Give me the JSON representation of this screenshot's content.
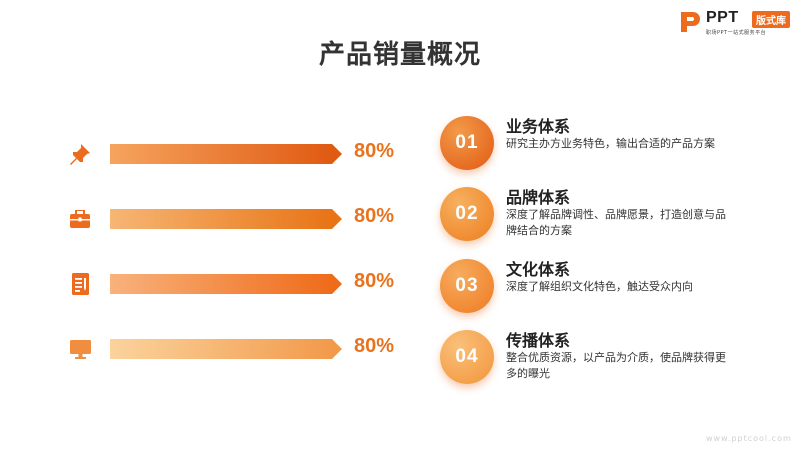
{
  "logo": {
    "name": "PPT",
    "badge": "版式库",
    "tagline": "职场PPT一站式服务平台"
  },
  "title": "产品销量概况",
  "bars": [
    {
      "icon": "pushpin-icon",
      "value_label": "80%",
      "percent": 80
    },
    {
      "icon": "briefcase-icon",
      "value_label": "80%",
      "percent": 80
    },
    {
      "icon": "document-icon",
      "value_label": "80%",
      "percent": 80
    },
    {
      "icon": "monitor-icon",
      "value_label": "80%",
      "percent": 80
    }
  ],
  "items": [
    {
      "number": "01",
      "title": "业务体系",
      "desc": "研究主办方业务特色，输出合适的产品方案"
    },
    {
      "number": "02",
      "title": "品牌体系",
      "desc": "深度了解品牌调性、品牌愿景，打造创意与品牌结合的方案"
    },
    {
      "number": "03",
      "title": "文化体系",
      "desc": "深度了解组织文化特色，触达受众内向"
    },
    {
      "number": "04",
      "title": "传播体系",
      "desc": "整合优质资源，以产品为介质，使品牌获得更多的曝光"
    }
  ],
  "footer_url": "www.pptcool.com",
  "colors": {
    "accent": "#e8731f",
    "accent_dark": "#e05a12",
    "accent_light": "#f6c68b"
  }
}
